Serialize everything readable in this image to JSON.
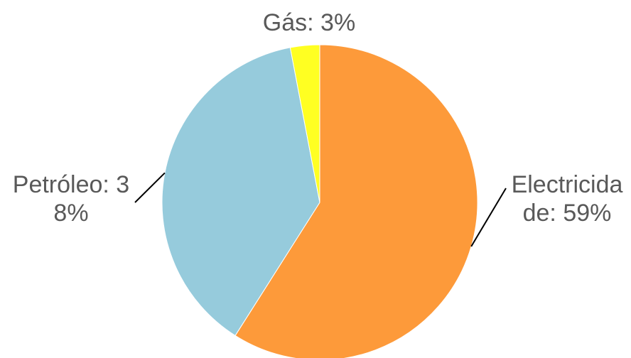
{
  "chart_data": {
    "type": "pie",
    "values": [
      59,
      38,
      3
    ],
    "value_labels": [
      "Electricidade: 59%",
      "Petróleo: 38%",
      "Gás: 3%"
    ],
    "colors": [
      "#fd9a3a",
      "#96cbdc",
      "#ffff22"
    ]
  }
}
